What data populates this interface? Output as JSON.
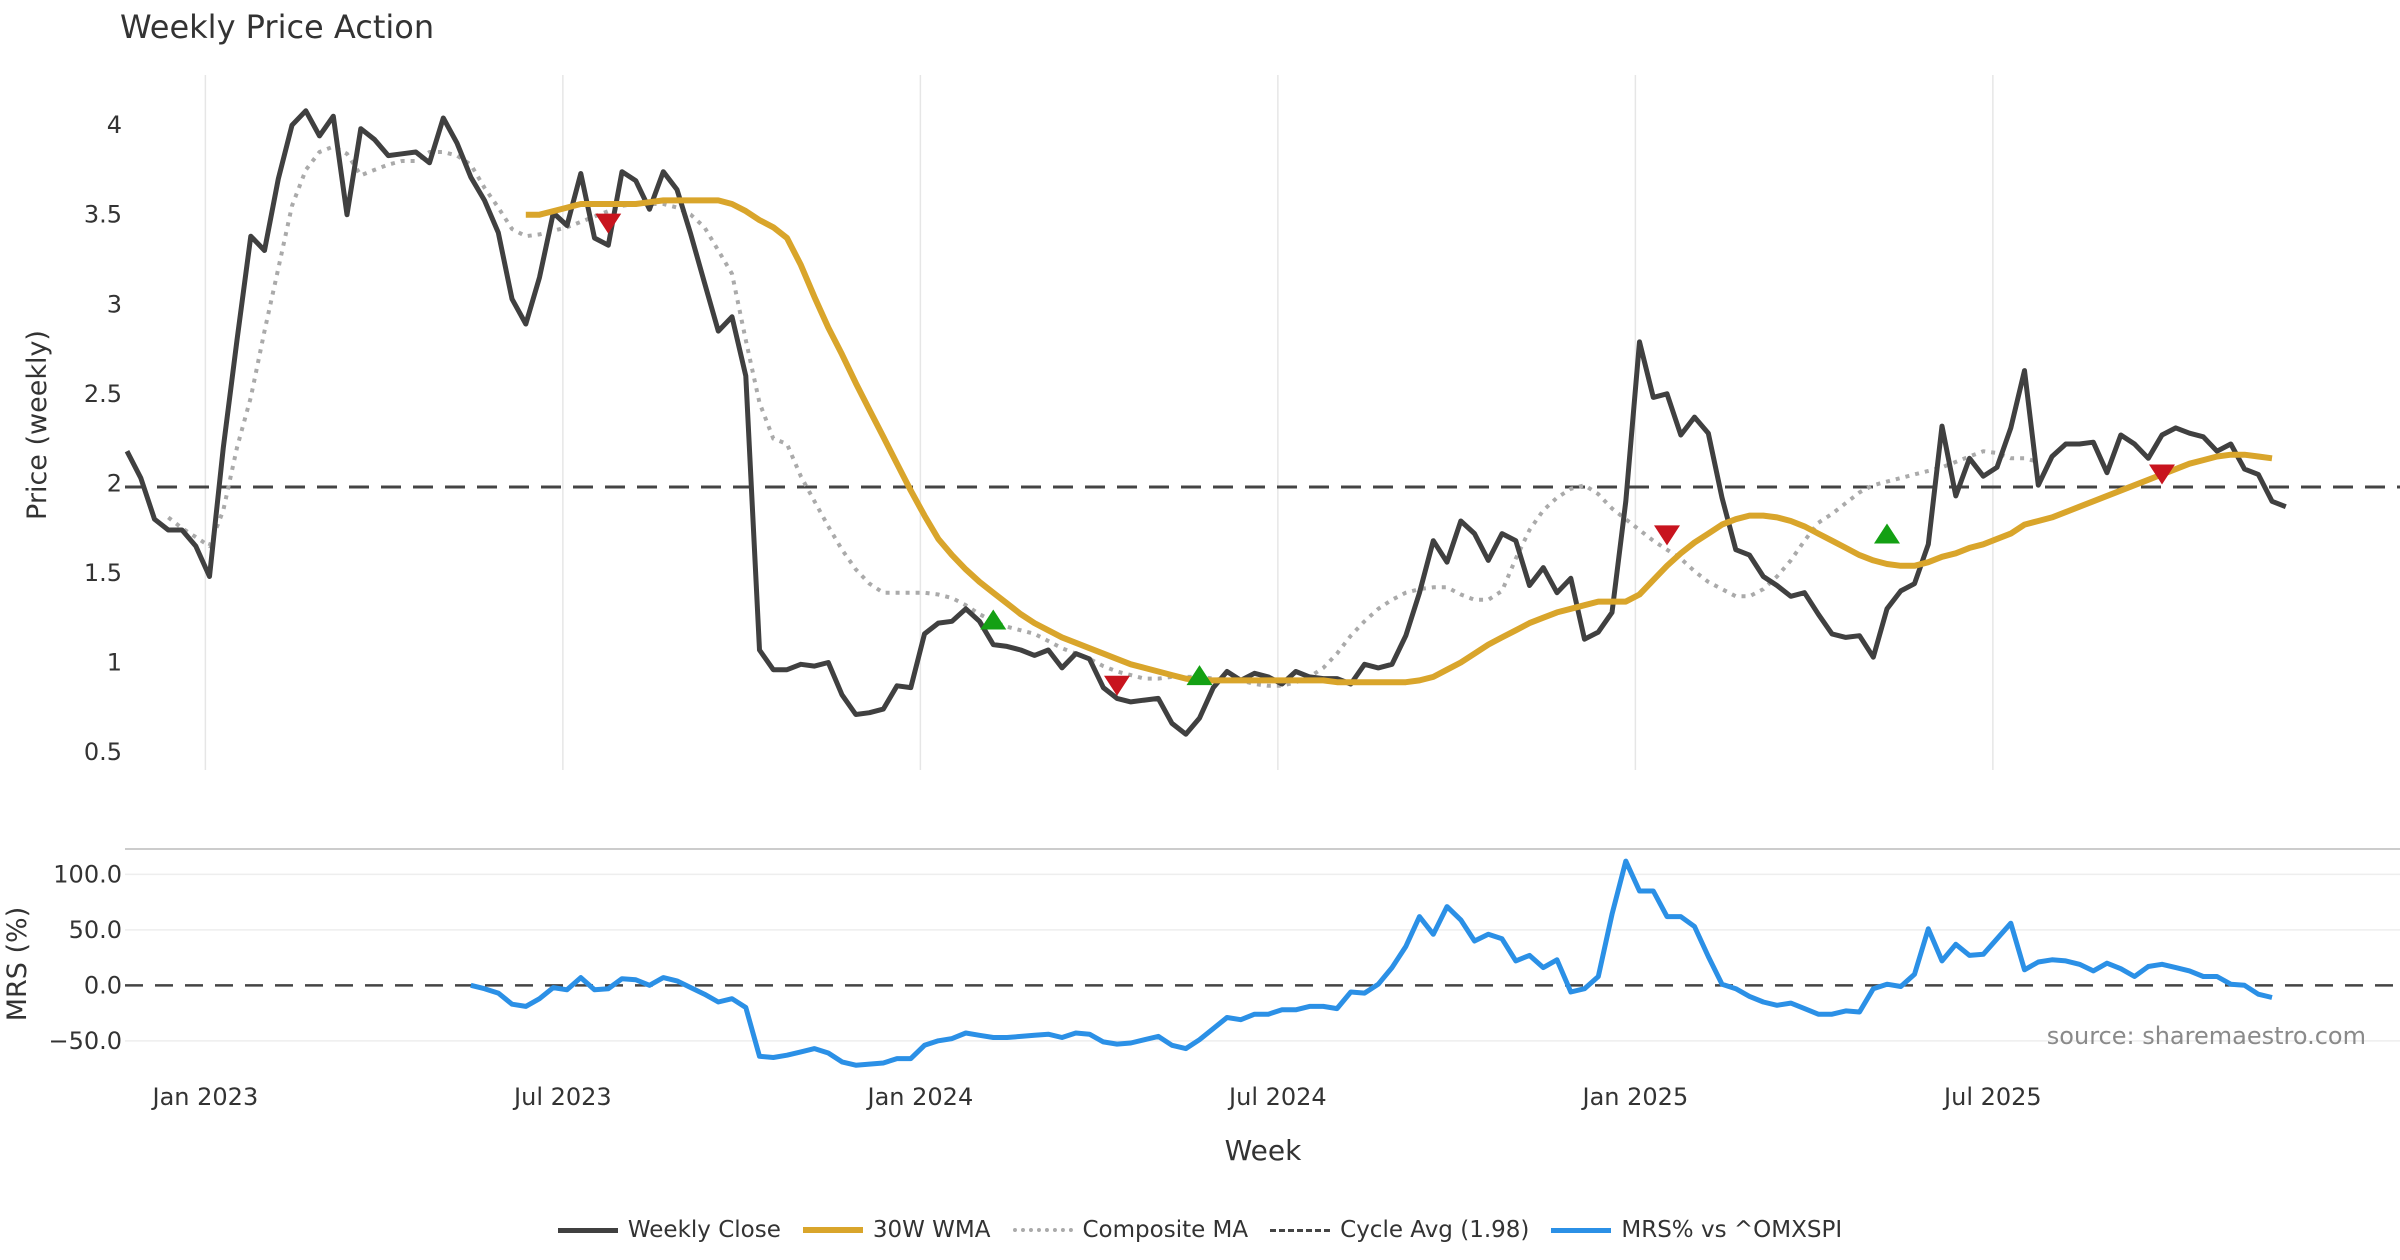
{
  "colors": {
    "close": "#404040",
    "wma": "#d9a52b",
    "composite": "#aaaaaa",
    "cycle": "#444444",
    "mrs": "#2b90e6",
    "buy": "#14a014",
    "sell": "#c8141e",
    "grid": "#e6e6e6",
    "source": "#8a8a8a"
  },
  "legend": {
    "close": "Weekly Close",
    "wma": "30W WMA",
    "composite": "Composite MA",
    "cycle": "Cycle Avg (1.98)",
    "mrs": "MRS% vs ^OMXSPI"
  },
  "chart_data": [
    {
      "type": "line",
      "title": "Weekly Price Action",
      "xlabel": "Week",
      "ylabel": "Price (weekly)",
      "ylim": [
        0.4,
        4.28
      ],
      "grid": "vertical",
      "x_ticks": [
        "Jan 2023",
        "Jul 2023",
        "Jan 2024",
        "Jul 2024",
        "Jan 2025",
        "Jul 2025"
      ],
      "y_ticks": [
        "0.5",
        "1",
        "1.5",
        "2",
        "2.5",
        "3",
        "3.5",
        "4"
      ],
      "x_start_week": 0,
      "cycle_avg": 1.98,
      "series": [
        {
          "name": "Weekly Close",
          "start_week": 0,
          "values": [
            2.18,
            2.03,
            1.8,
            1.74,
            1.74,
            1.65,
            1.48,
            2.2,
            2.8,
            3.38,
            3.3,
            3.7,
            4.0,
            4.08,
            3.94,
            4.05,
            3.5,
            3.98,
            3.92,
            3.83,
            3.84,
            3.85,
            3.79,
            4.04,
            3.9,
            3.71,
            3.58,
            3.4,
            3.03,
            2.89,
            3.15,
            3.51,
            3.44,
            3.73,
            3.37,
            3.33,
            3.74,
            3.69,
            3.53,
            3.74,
            3.64,
            3.39,
            3.12,
            2.85,
            2.93,
            2.6,
            1.07,
            0.96,
            0.96,
            0.99,
            0.98,
            1.0,
            0.82,
            0.71,
            0.72,
            0.74,
            0.87,
            0.86,
            1.16,
            1.22,
            1.23,
            1.3,
            1.23,
            1.1,
            1.09,
            1.07,
            1.04,
            1.07,
            0.97,
            1.05,
            1.02,
            0.86,
            0.8,
            0.78,
            0.79,
            0.8,
            0.66,
            0.6,
            0.69,
            0.86,
            0.95,
            0.9,
            0.94,
            0.92,
            0.88,
            0.95,
            0.92,
            0.91,
            0.91,
            0.88,
            0.99,
            0.97,
            0.99,
            1.15,
            1.39,
            1.68,
            1.56,
            1.79,
            1.72,
            1.57,
            1.72,
            1.68,
            1.43,
            1.53,
            1.39,
            1.47,
            1.13,
            1.17,
            1.28,
            1.9,
            2.79,
            2.48,
            2.5,
            2.27,
            2.37,
            2.28,
            1.92,
            1.63,
            1.6,
            1.48,
            1.43,
            1.37,
            1.39,
            1.27,
            1.16,
            1.14,
            1.15,
            1.03,
            1.3,
            1.4,
            1.44,
            1.66,
            2.32,
            1.93,
            2.14,
            2.04,
            2.09,
            2.31,
            2.63,
            1.99,
            2.15,
            2.22,
            2.22,
            2.23,
            2.06,
            2.27,
            2.22,
            2.14,
            2.27,
            2.31,
            2.28,
            2.26,
            2.18,
            2.22,
            2.08,
            2.05,
            1.9,
            1.87
          ]
        },
        {
          "name": "30W WMA",
          "start_week": 29,
          "values": [
            3.5,
            3.5,
            3.52,
            3.54,
            3.56,
            3.56,
            3.56,
            3.56,
            3.56,
            3.57,
            3.58,
            3.58,
            3.58,
            3.58,
            3.58,
            3.56,
            3.52,
            3.47,
            3.43,
            3.37,
            3.22,
            3.04,
            2.87,
            2.72,
            2.56,
            2.41,
            2.26,
            2.11,
            1.96,
            1.82,
            1.69,
            1.6,
            1.52,
            1.45,
            1.39,
            1.33,
            1.27,
            1.22,
            1.18,
            1.14,
            1.11,
            1.08,
            1.05,
            1.02,
            0.99,
            0.97,
            0.95,
            0.93,
            0.91,
            0.9,
            0.9,
            0.9,
            0.9,
            0.9,
            0.9,
            0.9,
            0.9,
            0.9,
            0.9,
            0.89,
            0.89,
            0.89,
            0.89,
            0.89,
            0.89,
            0.9,
            0.92,
            0.96,
            1.0,
            1.05,
            1.1,
            1.14,
            1.18,
            1.22,
            1.25,
            1.28,
            1.3,
            1.32,
            1.34,
            1.34,
            1.34,
            1.38,
            1.46,
            1.54,
            1.61,
            1.67,
            1.72,
            1.77,
            1.8,
            1.82,
            1.82,
            1.81,
            1.79,
            1.76,
            1.72,
            1.68,
            1.64,
            1.6,
            1.57,
            1.55,
            1.54,
            1.54,
            1.56,
            1.59,
            1.61,
            1.64,
            1.66,
            1.69,
            1.72,
            1.77,
            1.79,
            1.81,
            1.84,
            1.87,
            1.9,
            1.93,
            1.96,
            1.99,
            2.02,
            2.05,
            2.08,
            2.11,
            2.13,
            2.15,
            2.16,
            2.16,
            2.15,
            2.14
          ]
        },
        {
          "name": "Composite MA",
          "start_week": 3,
          "values": [
            1.81,
            1.75,
            1.7,
            1.65,
            1.85,
            2.2,
            2.48,
            2.85,
            3.2,
            3.55,
            3.75,
            3.85,
            3.88,
            3.84,
            3.72,
            3.75,
            3.78,
            3.8,
            3.8,
            3.85,
            3.85,
            3.83,
            3.78,
            3.65,
            3.54,
            3.42,
            3.38,
            3.39,
            3.41,
            3.43,
            3.46,
            3.49,
            3.52,
            3.55,
            3.56,
            3.56,
            3.56,
            3.54,
            3.5,
            3.43,
            3.3,
            3.17,
            2.8,
            2.45,
            2.25,
            2.22,
            2.04,
            1.9,
            1.76,
            1.63,
            1.52,
            1.44,
            1.39,
            1.39,
            1.39,
            1.39,
            1.38,
            1.36,
            1.32,
            1.27,
            1.23,
            1.2,
            1.18,
            1.16,
            1.12,
            1.08,
            1.05,
            1.02,
            0.98,
            0.95,
            0.93,
            0.91,
            0.91,
            0.92,
            0.92,
            0.92,
            0.91,
            0.9,
            0.9,
            0.88,
            0.87,
            0.87,
            0.89,
            0.92,
            0.97,
            1.05,
            1.15,
            1.23,
            1.3,
            1.35,
            1.39,
            1.41,
            1.42,
            1.42,
            1.38,
            1.35,
            1.35,
            1.4,
            1.58,
            1.74,
            1.85,
            1.92,
            1.97,
            1.99,
            1.94,
            1.86,
            1.8,
            1.74,
            1.68,
            1.63,
            1.58,
            1.51,
            1.45,
            1.41,
            1.37,
            1.37,
            1.41,
            1.48,
            1.57,
            1.68,
            1.78,
            1.83,
            1.89,
            1.95,
            1.99,
            2.01,
            2.03,
            2.05,
            2.07,
            2.09,
            2.12,
            2.15,
            2.18,
            2.17,
            2.14,
            2.14,
            2.12
          ]
        }
      ],
      "signals": [
        {
          "type": "sell",
          "week": 35,
          "value": 3.45
        },
        {
          "type": "buy",
          "week": 63,
          "value": 1.24
        },
        {
          "type": "sell",
          "week": 72,
          "value": 0.87
        },
        {
          "type": "buy",
          "week": 78,
          "value": 0.93
        },
        {
          "type": "sell",
          "week": 112,
          "value": 1.71
        },
        {
          "type": "buy",
          "week": 128,
          "value": 1.72
        },
        {
          "type": "sell",
          "week": 148,
          "value": 2.05
        }
      ]
    },
    {
      "type": "line",
      "title": "",
      "xlabel": "Week",
      "ylabel": "MRS (%)",
      "ylim": [
        -70,
        122
      ],
      "y_ticks": [
        "100.0",
        "50.0",
        "0.0",
        "−50.0"
      ],
      "zero_line": 0,
      "series": [
        {
          "name": "MRS% vs ^OMXSPI",
          "start_week": 25,
          "values": [
            0,
            -3,
            -7,
            -17,
            -19,
            -12,
            -2,
            -4,
            7,
            -4,
            -3,
            6,
            5,
            0,
            7,
            4,
            -2,
            -8,
            -15,
            -12,
            -20,
            -64,
            -65,
            -63,
            -60,
            -57,
            -61,
            -69,
            -72,
            -71,
            -70,
            -66,
            -66,
            -54,
            -50,
            -48,
            -43,
            -45,
            -47,
            -47,
            -46,
            -45,
            -44,
            -47,
            -43,
            -44,
            -51,
            -53,
            -52,
            -49,
            -46,
            -54,
            -57,
            -49,
            -39,
            -29,
            -31,
            -26,
            -26,
            -22,
            -22,
            -19,
            -19,
            -21,
            -6,
            -7,
            1,
            16,
            35,
            62,
            46,
            71,
            59,
            40,
            46,
            42,
            22,
            27,
            16,
            23,
            -6,
            -3,
            8,
            64,
            112,
            85,
            85,
            62,
            62,
            53,
            26,
            1,
            -3,
            -10,
            -15,
            -18,
            -16,
            -21,
            -26,
            -26,
            -23,
            -24,
            -3,
            1,
            -1,
            10,
            51,
            22,
            37,
            27,
            28,
            42,
            56,
            14,
            21,
            23,
            22,
            19,
            13,
            20,
            15,
            8,
            17,
            19,
            16,
            13,
            8,
            8,
            1,
            0,
            -8,
            -11
          ]
        }
      ],
      "annotation": "source: sharemaestro.com"
    }
  ]
}
